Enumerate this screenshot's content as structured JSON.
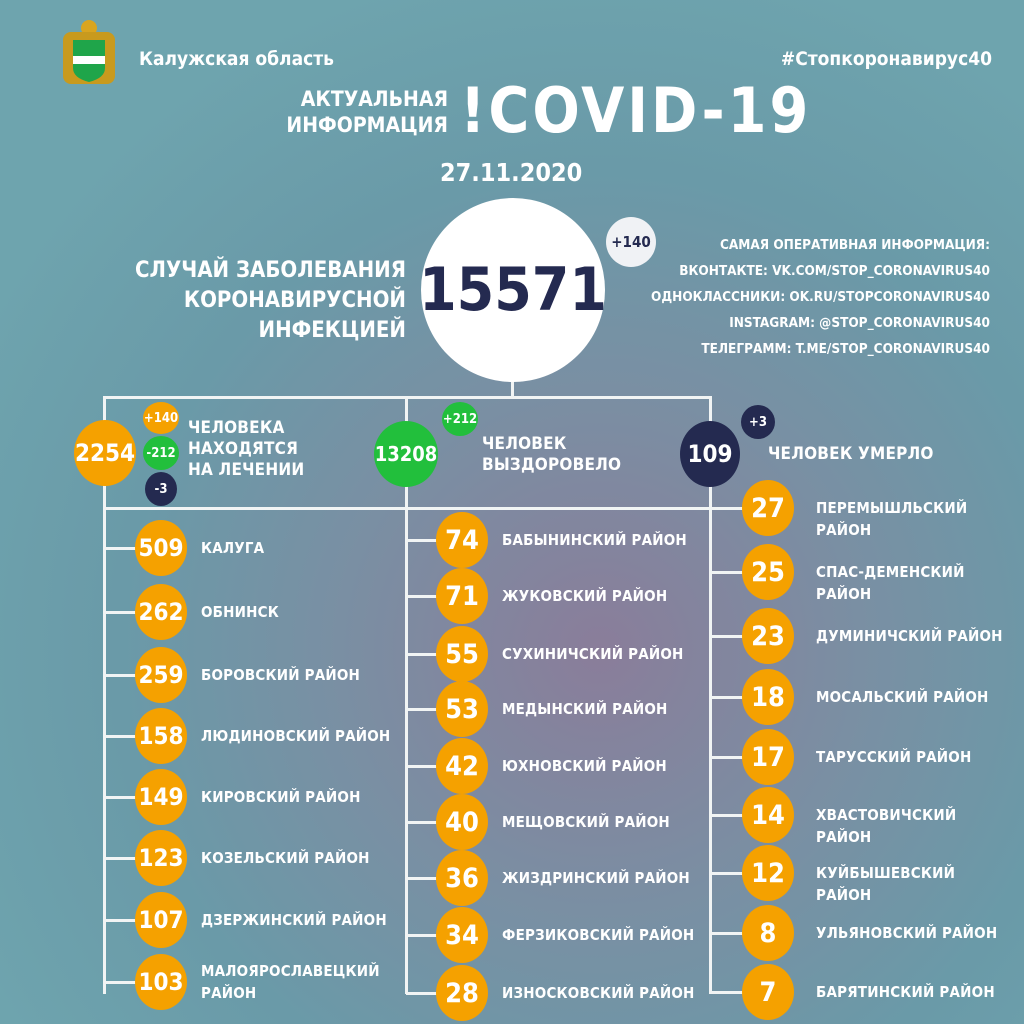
{
  "header": {
    "region": "Калужская область",
    "hashtag": "#Стопкоронавирус40",
    "title_small_1": "АКТУАЛЬНАЯ",
    "title_small_2": "ИНФОРМАЦИЯ",
    "title_big": "!COVID-19",
    "date": "27.11.2020"
  },
  "total": {
    "label_1": "СЛУЧАЙ ЗАБОЛЕВАНИЯ",
    "label_2": "КОРОНАВИРУСНОЙ ИНФЕКЦИЕЙ",
    "value": "15571",
    "delta": "+140"
  },
  "links": [
    "САМАЯ ОПЕРАТИВНАЯ ИНФОРМАЦИЯ:",
    "ВКОНТАКТЕ: VK.COM/STOP_CORONAVIRUS40",
    "ОДНОКЛАССНИКИ: OK.RU/STOPCORONAVIRUS40",
    "INSTAGRAM: @STOP_CORONAVIRUS40",
    "ТЕЛЕГРАММ: T.ME/STOP_CORONAVIRUS40"
  ],
  "treatment": {
    "value": "2254",
    "plus": "+140",
    "minus": "-212",
    "dead": "-3",
    "label_1": "ЧЕЛОВЕКА",
    "label_2": "НАХОДЯТСЯ",
    "label_3": "НА ЛЕЧЕНИИ"
  },
  "recovered": {
    "value": "13208",
    "delta": "+212",
    "label_1": "ЧЕЛОВЕК",
    "label_2": "ВЫЗДОРОВЕЛО"
  },
  "died": {
    "value": "109",
    "delta": "+3",
    "label": "ЧЕЛОВЕК УМЕРЛО"
  },
  "colors": {
    "orange": "#f5a100",
    "green": "#22bf3c",
    "navy": "#242a50"
  },
  "districts": [
    [
      {
        "v": "509",
        "n": "КАЛУГА"
      },
      {
        "v": "262",
        "n": "ОБНИНСК"
      },
      {
        "v": "259",
        "n": "БОРОВСКИЙ РАЙОН"
      },
      {
        "v": "158",
        "n": "ЛЮДИНОВСКИЙ РАЙОН"
      },
      {
        "v": "149",
        "n": "КИРОВСКИЙ РАЙОН"
      },
      {
        "v": "123",
        "n": "КОЗЕЛЬСКИЙ РАЙОН"
      },
      {
        "v": "107",
        "n": "ДЗЕРЖИНСКИЙ РАЙОН"
      },
      {
        "v": "103",
        "n": "МАЛОЯРОСЛАВЕЦКИЙ РАЙОН"
      }
    ],
    [
      {
        "v": "74",
        "n": "БАБЫНИНСКИЙ РАЙОН"
      },
      {
        "v": "71",
        "n": "ЖУКОВСКИЙ РАЙОН"
      },
      {
        "v": "55",
        "n": "СУХИНИЧСКИЙ РАЙОН"
      },
      {
        "v": "53",
        "n": "МЕДЫНСКИЙ РАЙОН"
      },
      {
        "v": "42",
        "n": "ЮХНОВСКИЙ РАЙОН"
      },
      {
        "v": "40",
        "n": "МЕЩОВСКИЙ РАЙОН"
      },
      {
        "v": "36",
        "n": "ЖИЗДРИНСКИЙ РАЙОН"
      },
      {
        "v": "34",
        "n": "ФЕРЗИКОВСКИЙ РАЙОН"
      },
      {
        "v": "28",
        "n": "ИЗНОСКОВСКИЙ РАЙОН"
      }
    ],
    [
      {
        "v": "27",
        "n": "ПЕРЕМЫШЛЬСКИЙ РАЙОН"
      },
      {
        "v": "25",
        "n": "СПАС-ДЕМЕНСКИЙ РАЙОН"
      },
      {
        "v": "23",
        "n": "ДУМИНИЧСКИЙ РАЙОН"
      },
      {
        "v": "18",
        "n": "МОСАЛЬСКИЙ РАЙОН"
      },
      {
        "v": "17",
        "n": "ТАРУССКИЙ РАЙОН"
      },
      {
        "v": "14",
        "n": "ХВАСТОВИЧСКИЙ РАЙОН"
      },
      {
        "v": "12",
        "n": "КУЙБЫШЕВСКИЙ РАЙОН"
      },
      {
        "v": "8",
        "n": "УЛЬЯНОВСКИЙ РАЙОН"
      },
      {
        "v": "7",
        "n": "БАРЯТИНСКИЙ РАЙОН"
      }
    ]
  ]
}
